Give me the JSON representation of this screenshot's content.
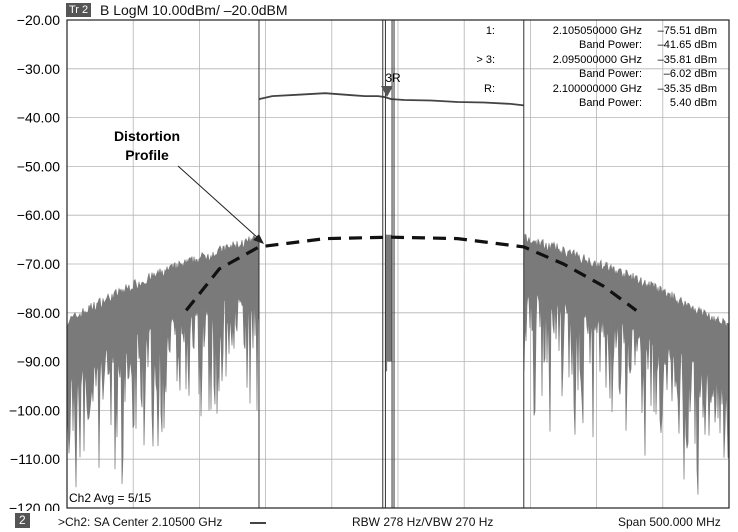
{
  "header": {
    "trace_badge": "Tr 2",
    "trace_desc": "B LogM 10.00dBm/ –20.0dBM"
  },
  "markers": [
    {
      "id": "1:",
      "freq": "2.105050000 GHz",
      "value": "–75.51 dBm",
      "band_label": "Band Power:",
      "band_value": "–41.65 dBm"
    },
    {
      "id": "> 3:",
      "freq": "2.095000000 GHz",
      "value": "–35.81 dBm",
      "band_label": "Band Power:",
      "band_value": "–6.02 dBm"
    },
    {
      "id": "R:",
      "freq": "2.100000000 GHz",
      "value": "–35.35 dBm",
      "band_label": "Band Power:",
      "band_value": "5.40 dBm"
    }
  ],
  "annotation": {
    "line1": "Distortion",
    "line2": "Profile",
    "marker_tag": "3R"
  },
  "avg_label": "Ch2 Avg = 5/15",
  "footer": {
    "channel_badge": "2",
    "center": ">Ch2: SA Center 2.10500 GHz",
    "rbw": "RBW 278 Hz/VBW 270 Hz",
    "span": "Span 500.000 MHz"
  },
  "colors": {
    "trace": "#7a7a7a",
    "grid": "#b5b5b5",
    "frame": "#222222",
    "dash": "#111111"
  },
  "chart_data": {
    "type": "area",
    "title": "",
    "xlabel": "",
    "ylabel": "",
    "y_ticks": [
      "−20.00",
      "−30.00",
      "−40.00",
      "−50.00",
      "−60.00",
      "−70.00",
      "−80.00",
      "−90.00",
      "−100.00",
      "−110.00",
      "−120.00"
    ],
    "ylim": [
      -120,
      -20
    ],
    "x_unit": "GHz",
    "xlim": [
      1.855,
      2.355
    ],
    "grid": true,
    "channel_edges_ghz": [
      2.0,
      2.2
    ],
    "marker_lines_ghz": [
      2.0935,
      2.0955,
      2.1005,
      2.102
    ],
    "notch_ghz": [
      2.0955,
      2.1005
    ],
    "series": [
      {
        "kind": "in-band",
        "x": [
          2.0,
          2.01,
          2.03,
          2.05,
          2.07,
          2.08,
          2.09,
          2.095,
          2.1,
          2.11,
          2.13,
          2.15,
          2.17,
          2.19,
          2.2
        ],
        "y": [
          -36.2,
          -35.6,
          -35.3,
          -35.0,
          -35.4,
          -35.6,
          -35.6,
          -35.8,
          -36.2,
          -36.4,
          -36.5,
          -36.8,
          -36.9,
          -37.2,
          -37.5
        ]
      },
      {
        "kind": "lower-distortion-envelope",
        "x": [
          1.855,
          1.88,
          1.905,
          1.93,
          1.955,
          1.98,
          2.0
        ],
        "y": [
          -83.0,
          -79.0,
          -75.5,
          -72.5,
          -70.0,
          -67.5,
          -66.0
        ]
      },
      {
        "kind": "upper-distortion-envelope",
        "x": [
          2.2,
          2.22,
          2.245,
          2.27,
          2.295,
          2.32,
          2.355
        ],
        "y": [
          -66.0,
          -67.5,
          -70.0,
          -72.5,
          -75.5,
          -79.0,
          -84.0
        ]
      },
      {
        "kind": "distortion-profile",
        "x": [
          1.945,
          1.97,
          2.0,
          2.05,
          2.1,
          2.15,
          2.2,
          2.23,
          2.26,
          2.285
        ],
        "y": [
          -79.5,
          -71.0,
          -66.5,
          -64.8,
          -64.5,
          -64.8,
          -66.5,
          -70.0,
          -74.5,
          -79.5
        ]
      }
    ]
  }
}
